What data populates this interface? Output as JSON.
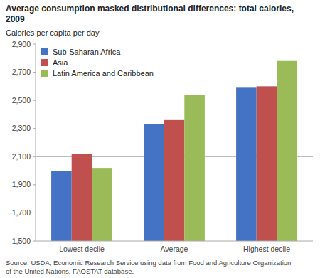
{
  "chart_data": {
    "type": "bar",
    "title": "Average consumption masked distributional differences: total calories, 2009",
    "ylabel": "Calories per capita per day",
    "categories": [
      "Lowest decile",
      "Average",
      "Highest decile"
    ],
    "series": [
      {
        "name": "Sub-Saharan Africa",
        "color": "#4472C4",
        "values": [
          2000,
          2330,
          2590
        ]
      },
      {
        "name": "Asia",
        "color": "#C0504D",
        "values": [
          2120,
          2360,
          2600
        ]
      },
      {
        "name": "Latin America and Caribbean",
        "color": "#9BBB59",
        "values": [
          2020,
          2540,
          2780
        ]
      }
    ],
    "ylim": [
      1500,
      2900
    ],
    "yticks": [
      {
        "value": 1500,
        "label": "1,500"
      },
      {
        "value": 1700,
        "label": "1,700"
      },
      {
        "value": 1900,
        "label": "1,900"
      },
      {
        "value": 2100,
        "label": "2,100"
      },
      {
        "value": 2300,
        "label": "2,300"
      },
      {
        "value": 2500,
        "label": "2,500"
      },
      {
        "value": 2700,
        "label": "2,700"
      },
      {
        "value": 2900,
        "label": "2,900"
      }
    ],
    "reference_line": 2100,
    "annotations": [
      "Source: USDA, Economic Research Service using data from Food and Agriculture Organization\nof the United Nations, FAOSTAT database."
    ],
    "grid": false,
    "legend": "upper left"
  }
}
